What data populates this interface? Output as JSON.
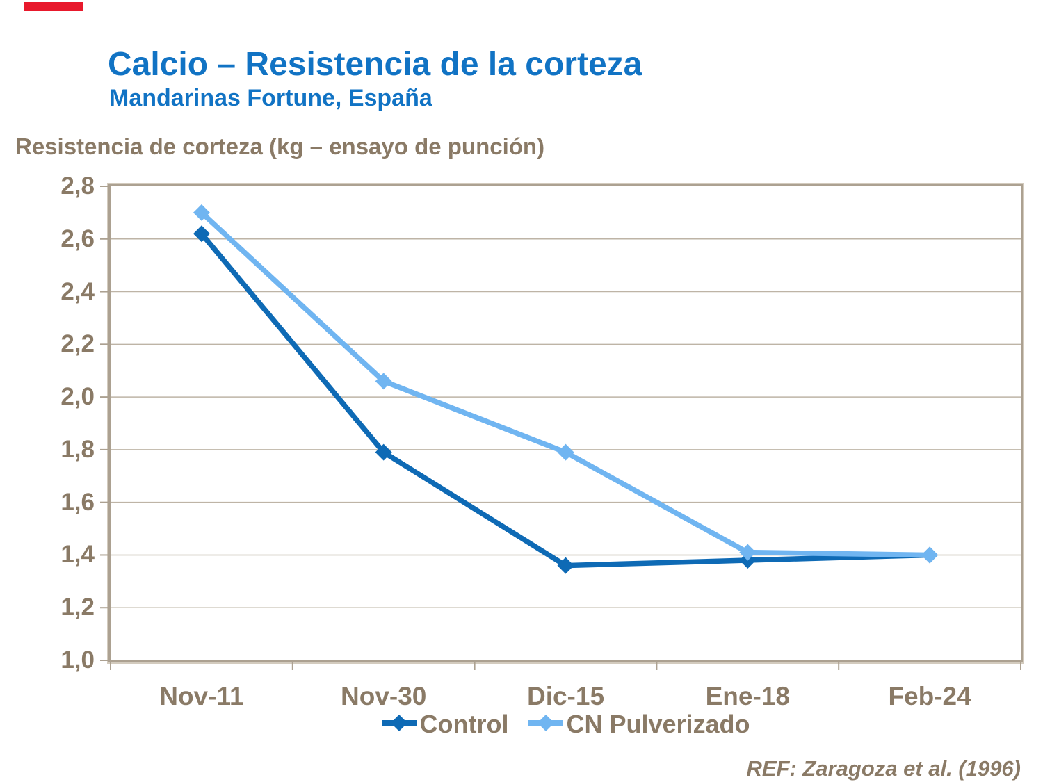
{
  "page": {
    "title": "Calcio – Resistencia de la corteza",
    "subtitle": "Mandarinas Fortune, España",
    "reference": "REF: Zaragoza et al. (1996)",
    "colors": {
      "title_blue": "#1173c4",
      "text_brown": "#8a7a66",
      "accent_red": "#e8192c",
      "plot_border": "#aca191",
      "plot_border_halo": "#d3cbbe",
      "gridline": "#beb4a6",
      "background": "#ffffff"
    }
  },
  "chart_data": {
    "type": "line",
    "title": "Resistencia de corteza (kg – ensayo de punción)",
    "categories": [
      "Nov-11",
      "Nov-30",
      "Dic-15",
      "Ene-18",
      "Feb-24"
    ],
    "series": [
      {
        "name": "Control",
        "color": "#0e6ab5",
        "marker": "diamond",
        "values": [
          2.62,
          1.79,
          1.36,
          1.38,
          1.4
        ]
      },
      {
        "name": "CN Pulverizado",
        "color": "#70b5f1",
        "marker": "diamond",
        "values": [
          2.7,
          2.06,
          1.79,
          1.41,
          1.4
        ]
      }
    ],
    "ylim": [
      1.0,
      2.8
    ],
    "y_ticks": [
      {
        "label": "2,8",
        "value": 2.8
      },
      {
        "label": "2,6",
        "value": 2.6
      },
      {
        "label": "2,4",
        "value": 2.4
      },
      {
        "label": "2,2",
        "value": 2.2
      },
      {
        "label": "2,0",
        "value": 2.0
      },
      {
        "label": "1,8",
        "value": 1.8
      },
      {
        "label": "1,6",
        "value": 1.6
      },
      {
        "label": "1,4",
        "value": 1.4
      },
      {
        "label": "1,2",
        "value": 1.2
      },
      {
        "label": "1,0",
        "value": 1.0
      }
    ],
    "grid": "horizontal",
    "legend_position": "bottom"
  }
}
